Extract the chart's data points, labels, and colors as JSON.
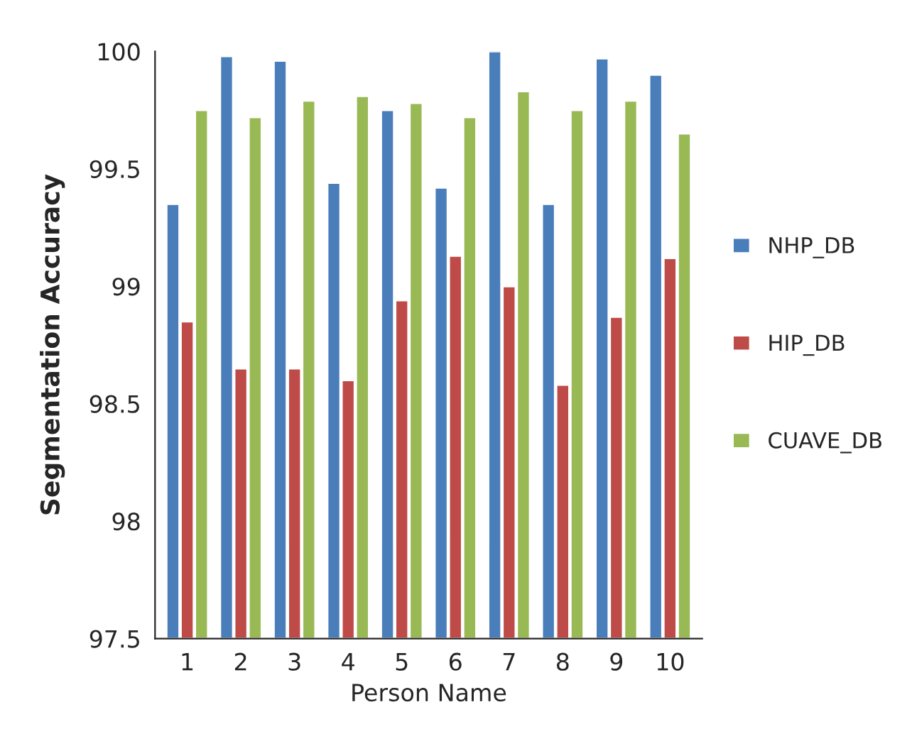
{
  "chart_data": {
    "type": "bar",
    "xlabel": "Person Name",
    "ylabel": "Segmentation Accuracy",
    "categories": [
      "1",
      "2",
      "3",
      "4",
      "5",
      "6",
      "7",
      "8",
      "9",
      "10"
    ],
    "series": [
      {
        "name": "NHP_DB",
        "color": "#4a7ebb",
        "values": [
          99.35,
          99.98,
          99.96,
          99.44,
          99.75,
          99.42,
          100.0,
          99.35,
          99.97,
          99.9
        ]
      },
      {
        "name": "HIP_DB",
        "color": "#be4b48",
        "values": [
          98.85,
          98.65,
          98.65,
          98.6,
          98.94,
          99.13,
          99.0,
          98.58,
          98.87,
          99.12
        ]
      },
      {
        "name": "CUAVE_DB",
        "color": "#98b954",
        "values": [
          99.75,
          99.72,
          99.79,
          99.81,
          99.78,
          99.72,
          99.83,
          99.75,
          99.79,
          99.65
        ]
      }
    ],
    "ylim": [
      97.5,
      100
    ],
    "yticks": [
      97.5,
      98,
      98.5,
      99,
      99.5,
      100
    ],
    "grid": false,
    "legend": "right"
  }
}
